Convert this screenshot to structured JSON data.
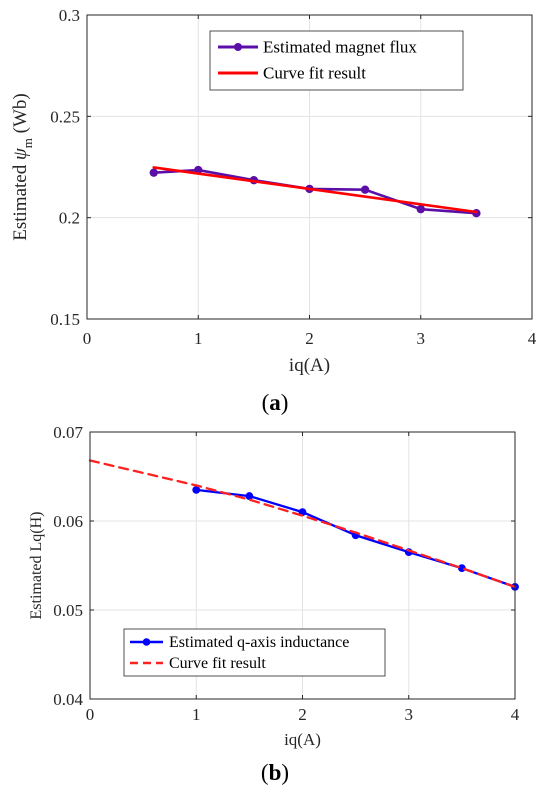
{
  "chart_data": [
    {
      "type": "line",
      "panel_label": {
        "open": "(",
        "letter": "a",
        "close": ")"
      },
      "xlabel": "iq(A)",
      "ylabel": {
        "prefix": "Estimated ",
        "symbol": "ψ",
        "subscript": "m",
        "unit": " (Wb)"
      },
      "xlim": [
        0,
        4
      ],
      "ylim": [
        0.15,
        0.3
      ],
      "xticks": [
        "0",
        "1",
        "2",
        "3",
        "4"
      ],
      "yticks": [
        "0.15",
        "0.2",
        "0.25",
        "0.3"
      ],
      "grid": true,
      "legend_position": "top-right",
      "series": [
        {
          "name": "Estimated magnet flux",
          "color": "#5b0fa8",
          "style": "solid-markers",
          "x": [
            0.6,
            1.0,
            1.5,
            2.0,
            2.5,
            3.0,
            3.5
          ],
          "y": [
            0.2222,
            0.2235,
            0.2185,
            0.2142,
            0.2138,
            0.2042,
            0.2022
          ]
        },
        {
          "name": "Curve fit result",
          "color": "#ff0000",
          "style": "solid",
          "x": [
            0.6,
            3.5
          ],
          "y": [
            0.2248,
            0.2028
          ]
        }
      ]
    },
    {
      "type": "line",
      "panel_label": {
        "open": "(",
        "letter": "b",
        "close": ")"
      },
      "xlabel": "iq(A)",
      "ylabel": "Estimated Lq(H)",
      "xlim": [
        0,
        4
      ],
      "ylim": [
        0.04,
        0.07
      ],
      "xticks": [
        "0",
        "1",
        "2",
        "3",
        "4"
      ],
      "yticks": [
        "0.04",
        "0.05",
        "0.06",
        "0.07"
      ],
      "grid": true,
      "legend_position": "bottom-left",
      "series": [
        {
          "name": "Estimated q-axis inductance",
          "color": "#0000ff",
          "style": "solid-markers",
          "x": [
            1.0,
            1.5,
            2.0,
            2.5,
            3.0,
            3.5,
            4.0
          ],
          "y": [
            0.0635,
            0.0628,
            0.061,
            0.0584,
            0.0565,
            0.0547,
            0.0526
          ]
        },
        {
          "name": "Curve fit result",
          "color": "#ff2020",
          "style": "dashed",
          "x": [
            0,
            0.5,
            1.0,
            1.5,
            2.0,
            2.5,
            3.0,
            3.5,
            4.0
          ],
          "y": [
            0.0668,
            0.0654,
            0.064,
            0.0624,
            0.0606,
            0.0587,
            0.0567,
            0.0547,
            0.0526
          ]
        }
      ]
    }
  ]
}
